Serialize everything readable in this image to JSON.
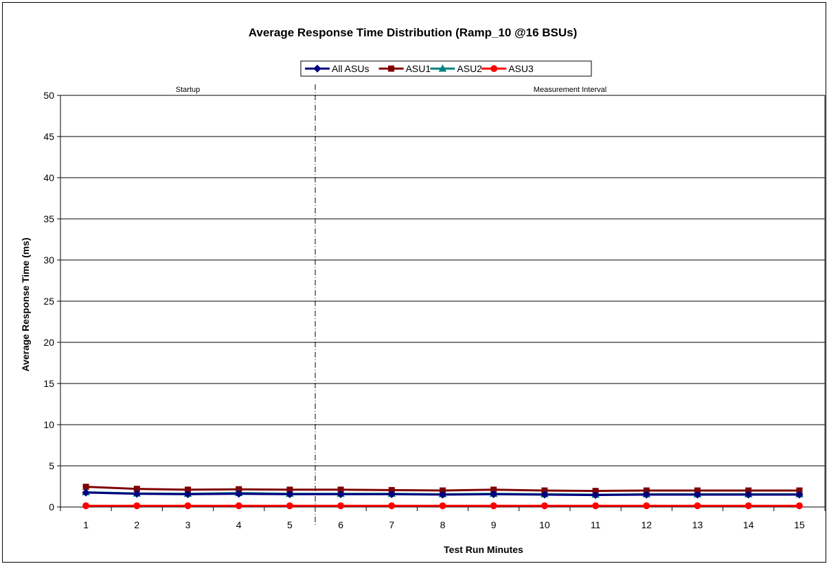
{
  "chart_data": {
    "type": "line",
    "title": "Average Response Time Distribution (Ramp_10 @16 BSUs)",
    "xlabel": "Test Run Minutes",
    "ylabel": "Average Response Time (ms)",
    "x": [
      1,
      2,
      3,
      4,
      5,
      6,
      7,
      8,
      9,
      10,
      11,
      12,
      13,
      14,
      15
    ],
    "ylim": [
      0,
      50
    ],
    "yticks": [
      0,
      5,
      10,
      15,
      20,
      25,
      30,
      35,
      40,
      45,
      50
    ],
    "grid": true,
    "legend_position": "top-center",
    "phases": [
      {
        "label": "Startup"
      },
      {
        "label": "Measurement Interval"
      }
    ],
    "phase_boundary_after_x": 5,
    "series": [
      {
        "name": "All ASUs",
        "color": "#000080",
        "marker": "diamond",
        "values": [
          1.75,
          1.6,
          1.55,
          1.6,
          1.55,
          1.55,
          1.55,
          1.5,
          1.55,
          1.5,
          1.45,
          1.5,
          1.5,
          1.5,
          1.5
        ]
      },
      {
        "name": "ASU1",
        "color": "#800000",
        "marker": "square",
        "values": [
          2.45,
          2.2,
          2.1,
          2.15,
          2.1,
          2.1,
          2.05,
          2.0,
          2.1,
          2.0,
          1.95,
          2.0,
          2.0,
          2.0,
          2.0
        ]
      },
      {
        "name": "ASU2",
        "color": "#008080",
        "marker": "triangle",
        "values": [
          1.8,
          1.65,
          1.6,
          1.7,
          1.6,
          1.6,
          1.6,
          1.55,
          1.6,
          1.55,
          1.5,
          1.55,
          1.55,
          1.55,
          1.55
        ]
      },
      {
        "name": "ASU3",
        "color": "#ff0000",
        "marker": "circle",
        "values": [
          0.15,
          0.15,
          0.15,
          0.15,
          0.15,
          0.15,
          0.15,
          0.15,
          0.15,
          0.15,
          0.15,
          0.15,
          0.15,
          0.15,
          0.15
        ]
      }
    ]
  }
}
